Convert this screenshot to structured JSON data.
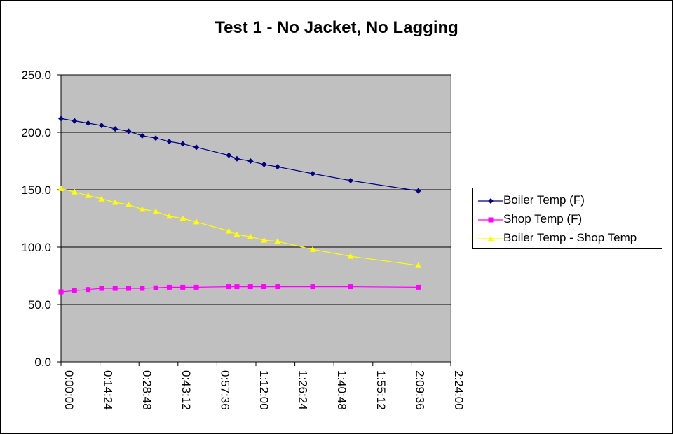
{
  "chart_data": {
    "type": "line",
    "title": "Test 1 - No Jacket, No Lagging",
    "xlabel": "",
    "ylabel": "",
    "ylim": [
      0,
      250
    ],
    "xlim": [
      "0:00:00",
      "2:24:00"
    ],
    "y_ticks": [
      "0.0",
      "50.0",
      "100.0",
      "150.0",
      "200.0",
      "250.0"
    ],
    "x_ticks": [
      "0:00:00",
      "0:14:24",
      "0:28:48",
      "0:43:12",
      "0:57:36",
      "1:12:00",
      "1:26:24",
      "1:40:48",
      "1:55:12",
      "2:09:36",
      "2:24:00"
    ],
    "grid": "horizontal",
    "plot_background": "#c0c0c0",
    "legend_position": "right",
    "x": [
      "0:00:00",
      "0:05:00",
      "0:10:00",
      "0:15:00",
      "0:20:00",
      "0:25:00",
      "0:30:00",
      "0:35:00",
      "0:40:00",
      "0:45:00",
      "0:50:00",
      "1:02:00",
      "1:05:00",
      "1:10:00",
      "1:15:00",
      "1:20:00",
      "1:33:00",
      "1:47:00",
      "2:12:00"
    ],
    "series": [
      {
        "name": "Boiler Temp (F)",
        "color": "#000080",
        "marker": "diamond",
        "values": [
          212,
          210,
          208,
          206,
          203,
          201,
          197,
          195,
          192,
          190,
          187,
          180,
          177,
          175,
          172,
          170,
          164,
          158,
          149
        ]
      },
      {
        "name": "Shop Temp (F)",
        "color": "#ff00ff",
        "marker": "square",
        "values": [
          61,
          62,
          63,
          64,
          64,
          64,
          64,
          64.5,
          65,
          65,
          65,
          65.5,
          65.5,
          65.5,
          65.5,
          65.5,
          65.5,
          65.5,
          65
        ]
      },
      {
        "name": "Boiler Temp - Shop Temp",
        "color": "#ffff00",
        "marker": "triangle",
        "values": [
          151,
          148,
          145,
          142,
          139,
          137,
          133,
          131,
          127,
          125,
          122,
          114,
          111,
          109,
          106,
          105,
          98,
          92,
          84
        ]
      }
    ]
  }
}
